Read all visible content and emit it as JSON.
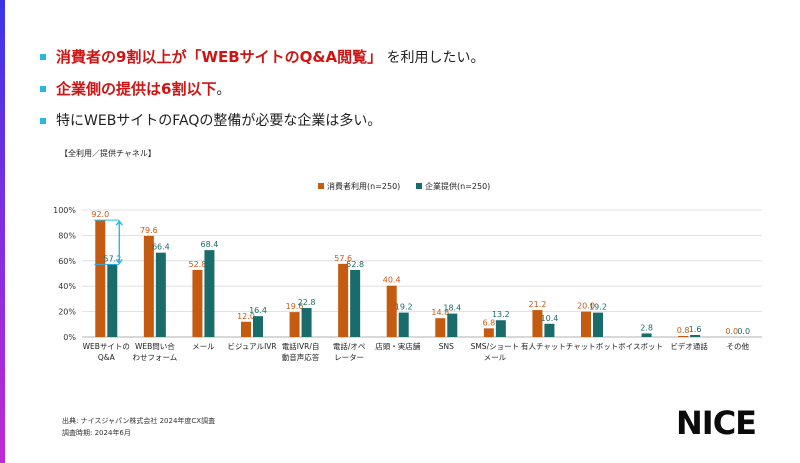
{
  "bullets": [
    {
      "red": "消費者の9割以上が「WEBサイトのQ&A閲覧」",
      "plain": "を利用したい。"
    },
    {
      "red": "企業側の提供は6割以下",
      "plain": "。"
    },
    {
      "red": "",
      "plain": "特にWEBサイトのFAQの整備が必要な企業は多い。"
    }
  ],
  "subhead": "【全利用／提供チャネル】",
  "footer": {
    "source": "出典: ナイスジャパン株式会社 2024年度CX調査",
    "period": "調査時期: 2024年6月"
  },
  "logo": "NICE",
  "colors": {
    "consumer": "#c55a11",
    "company": "#1a6b6b",
    "accent": "#29b6e8"
  },
  "chart_data": {
    "type": "bar",
    "categories": [
      [
        "WEBサイトの",
        "Q&A"
      ],
      [
        "WEB問い合",
        "わせフォーム"
      ],
      [
        "メール"
      ],
      [
        "ビジュアルIVR"
      ],
      [
        "電話IVR/自",
        "動音声応答"
      ],
      [
        "電話/オペ",
        "レーター"
      ],
      [
        "店頭・実店舗"
      ],
      [
        "SNS"
      ],
      [
        "SMS/ショート",
        "メール"
      ],
      [
        "有人チャット"
      ],
      [
        "チャットボット"
      ],
      [
        "ボイスボット"
      ],
      [
        "ビデオ通話"
      ],
      [
        "その他"
      ]
    ],
    "series": [
      {
        "name": "消費者利用(n=250)",
        "values": [
          92.0,
          79.6,
          52.8,
          12.0,
          19.6,
          57.6,
          40.4,
          14.8,
          6.8,
          21.2,
          20.0,
          null,
          0.8,
          0.0
        ]
      },
      {
        "name": "企業提供(n=250)",
        "values": [
          57.2,
          66.4,
          68.4,
          16.4,
          22.8,
          52.8,
          19.2,
          18.4,
          13.2,
          10.4,
          19.2,
          2.8,
          1.6,
          0.0
        ]
      }
    ],
    "yticks": [
      "0%",
      "20%",
      "40%",
      "60%",
      "80%",
      "100%"
    ],
    "ylim": [
      0,
      100
    ],
    "legend_position": "top",
    "grid": true,
    "annotation": "double arrow between 92.0 and 57.2 on WEBサイトのQ&A"
  }
}
